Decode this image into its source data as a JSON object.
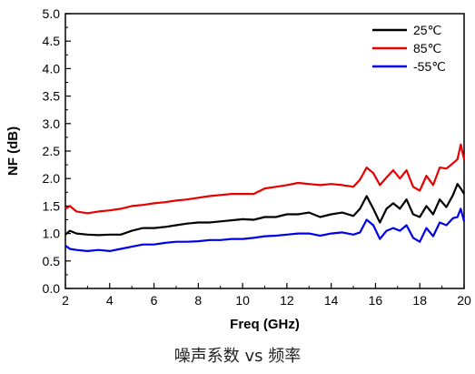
{
  "caption": "噪声系数 vs 频率",
  "chart_data": {
    "type": "line",
    "title": "",
    "xlabel": "Freq (GHz)",
    "ylabel": "NF (dB)",
    "xlim": [
      2,
      20
    ],
    "ylim": [
      0.0,
      5.0
    ],
    "xticks": [
      "2",
      "4",
      "6",
      "8",
      "10",
      "12",
      "14",
      "16",
      "18",
      "20"
    ],
    "yticks": [
      "0.0",
      "0.5",
      "1.0",
      "1.5",
      "2.0",
      "2.5",
      "3.0",
      "3.5",
      "4.0",
      "4.5",
      "5.0"
    ],
    "grid": false,
    "legend_position": "top-right",
    "x": [
      2.0,
      2.2,
      2.5,
      3.0,
      3.5,
      4.0,
      4.5,
      5.0,
      5.5,
      6.0,
      6.5,
      7.0,
      7.5,
      8.0,
      8.5,
      9.0,
      9.5,
      10.0,
      10.5,
      11.0,
      11.5,
      12.0,
      12.5,
      13.0,
      13.5,
      14.0,
      14.5,
      15.0,
      15.3,
      15.6,
      15.9,
      16.2,
      16.5,
      16.8,
      17.1,
      17.4,
      17.7,
      18.0,
      18.3,
      18.6,
      18.9,
      19.2,
      19.5,
      19.7,
      19.85,
      20.0
    ],
    "series": [
      {
        "name": "25℃",
        "color": "#000000",
        "values": [
          0.98,
          1.05,
          1.0,
          0.98,
          0.97,
          0.98,
          0.98,
          1.05,
          1.1,
          1.1,
          1.12,
          1.15,
          1.18,
          1.2,
          1.2,
          1.22,
          1.24,
          1.26,
          1.25,
          1.3,
          1.3,
          1.35,
          1.35,
          1.38,
          1.3,
          1.35,
          1.38,
          1.32,
          1.45,
          1.68,
          1.45,
          1.2,
          1.45,
          1.55,
          1.45,
          1.62,
          1.35,
          1.3,
          1.5,
          1.35,
          1.62,
          1.48,
          1.7,
          1.9,
          1.82,
          1.72
        ]
      },
      {
        "name": "85℃",
        "color": "#e60000",
        "values": [
          1.45,
          1.5,
          1.4,
          1.37,
          1.4,
          1.42,
          1.45,
          1.5,
          1.52,
          1.55,
          1.57,
          1.6,
          1.62,
          1.65,
          1.68,
          1.7,
          1.72,
          1.72,
          1.72,
          1.82,
          1.85,
          1.88,
          1.92,
          1.9,
          1.88,
          1.9,
          1.88,
          1.85,
          1.98,
          2.2,
          2.1,
          1.88,
          2.02,
          2.15,
          2.0,
          2.15,
          1.85,
          1.78,
          2.05,
          1.88,
          2.2,
          2.18,
          2.28,
          2.35,
          2.62,
          2.35
        ]
      },
      {
        "name": "-55℃",
        "color": "#0000e6",
        "values": [
          0.78,
          0.72,
          0.7,
          0.68,
          0.7,
          0.68,
          0.72,
          0.76,
          0.8,
          0.8,
          0.83,
          0.85,
          0.85,
          0.86,
          0.88,
          0.88,
          0.9,
          0.9,
          0.92,
          0.95,
          0.96,
          0.98,
          1.0,
          1.0,
          0.96,
          1.0,
          1.02,
          0.98,
          1.02,
          1.25,
          1.15,
          0.9,
          1.05,
          1.1,
          1.05,
          1.15,
          0.92,
          0.85,
          1.1,
          0.95,
          1.2,
          1.15,
          1.28,
          1.3,
          1.45,
          1.22
        ]
      }
    ]
  }
}
